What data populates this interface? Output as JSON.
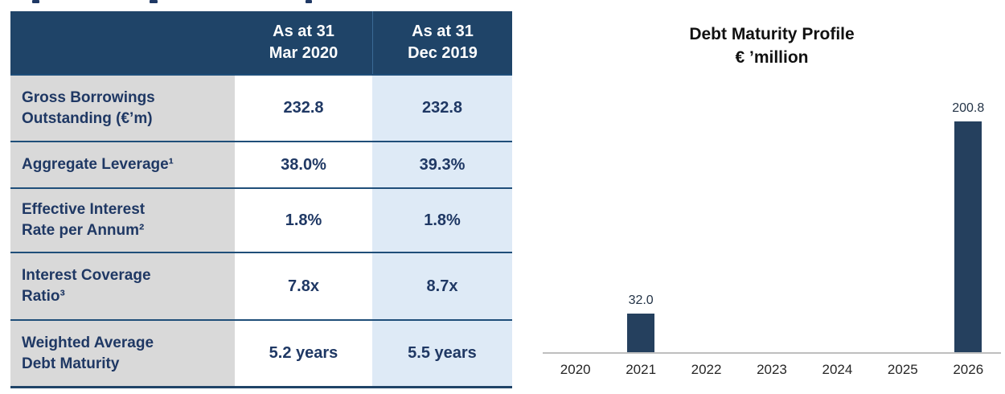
{
  "colors": {
    "header_bg": "#1f4468",
    "label_col_bg": "#d9d9d9",
    "mar2020_col_bg": "#ffffff",
    "dec2019_col_bg": "#deeaf6",
    "divider": "#1f4e79",
    "table_text": "#1f3864",
    "bar": "#25405e",
    "axis": "#bfbfbf",
    "chart_text": "#262626"
  },
  "table": {
    "columns": [
      "As at 31\nMar 2020",
      "As at 31\nDec 2019"
    ],
    "rows": [
      {
        "label": "Gross Borrowings\nOutstanding (€’m)",
        "mar2020": "232.8",
        "dec2019": "232.8"
      },
      {
        "label": "Aggregate Leverage¹",
        "mar2020": "38.0%",
        "dec2019": "39.3%"
      },
      {
        "label": "Effective Interest\nRate per Annum²",
        "mar2020": "1.8%",
        "dec2019": "1.8%"
      },
      {
        "label": "Interest Coverage\nRatio³",
        "mar2020": "7.8x",
        "dec2019": "8.7x"
      },
      {
        "label": "Weighted Average\nDebt Maturity",
        "mar2020": "5.2 years",
        "dec2019": "5.5 years"
      }
    ]
  },
  "chart_data": {
    "type": "bar",
    "title": "Debt Maturity Profile",
    "subtitle": "€ ’million",
    "categories": [
      "2020",
      "2021",
      "2022",
      "2023",
      "2024",
      "2025",
      "2026"
    ],
    "values": [
      null,
      32.0,
      null,
      null,
      null,
      null,
      200.8
    ],
    "value_labels": [
      null,
      "32.0",
      null,
      null,
      null,
      null,
      "200.8"
    ],
    "xlabel": "",
    "ylabel": "",
    "ylim": [
      0,
      210
    ],
    "grid": false,
    "legend": false,
    "bar_color": "#25405e"
  }
}
